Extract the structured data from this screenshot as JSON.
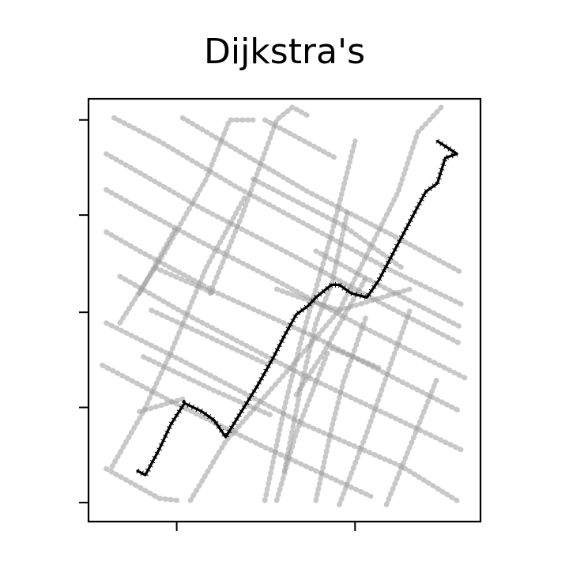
{
  "chart_data": {
    "type": "line",
    "title": "Dijkstra's",
    "xlabel": "",
    "ylabel": "",
    "xlim": [
      0,
      100
    ],
    "ylim": [
      0,
      100
    ],
    "x_ticks": [
      22.5,
      68
    ],
    "x_tick_labels": [
      "",
      ""
    ],
    "y_ticks": [
      4.5,
      27,
      49.5,
      72.5,
      95
    ],
    "y_tick_labels": [
      "",
      "",
      "",
      "",
      ""
    ],
    "grid": false,
    "legend": "none",
    "colors": {
      "streets": "#9a9a9a",
      "route": "#000000"
    },
    "streets": [
      [
        [
          6.5,
          95.5
        ],
        [
          18,
          90
        ],
        [
          38,
          79
        ],
        [
          57,
          69.5
        ],
        [
          77,
          59.5
        ],
        [
          96,
          51
        ]
      ],
      [
        [
          4.5,
          87
        ],
        [
          14,
          82
        ],
        [
          29,
          74
        ],
        [
          52,
          63
        ],
        [
          74,
          52
        ],
        [
          95,
          42
        ]
      ],
      [
        [
          4.5,
          78.5
        ],
        [
          15,
          73
        ],
        [
          29,
          66
        ],
        [
          48,
          57
        ],
        [
          70,
          46
        ],
        [
          96,
          34
        ]
      ],
      [
        [
          4.5,
          68.5
        ],
        [
          13,
          64
        ],
        [
          33,
          54
        ],
        [
          57,
          44
        ],
        [
          80,
          33
        ],
        [
          95,
          26
        ]
      ],
      [
        [
          8,
          58
        ],
        [
          25,
          49
        ],
        [
          54,
          35
        ],
        [
          77,
          25
        ],
        [
          95,
          17
        ]
      ],
      [
        [
          4.5,
          47
        ],
        [
          24,
          38
        ],
        [
          55,
          23
        ],
        [
          80,
          13
        ],
        [
          94,
          5
        ]
      ],
      [
        [
          3.5,
          37
        ],
        [
          22,
          28
        ],
        [
          44,
          18
        ],
        [
          72,
          6
        ]
      ],
      [
        [
          4.5,
          12.5
        ],
        [
          18,
          5.5
        ],
        [
          23,
          5
        ]
      ],
      [
        [
          24,
          95.5
        ],
        [
          34,
          90
        ],
        [
          56,
          78
        ],
        [
          77,
          68
        ],
        [
          95,
          59
        ]
      ],
      [
        [
          45,
          95
        ],
        [
          63,
          86
        ]
      ],
      [
        [
          42,
          81
        ],
        [
          65,
          70
        ],
        [
          80,
          60
        ]
      ],
      [
        [
          58,
          64
        ],
        [
          72,
          57
        ],
        [
          95,
          46
        ]
      ],
      [
        [
          26,
          5
        ],
        [
          35,
          19
        ],
        [
          52,
          37
        ],
        [
          64,
          50
        ],
        [
          79,
          78
        ],
        [
          84,
          92
        ],
        [
          90,
          98
        ]
      ],
      [
        [
          8,
          47
        ],
        [
          19,
          63
        ],
        [
          30,
          81
        ],
        [
          36,
          95
        ],
        [
          42,
          95
        ]
      ],
      [
        [
          13,
          54
        ],
        [
          22,
          69
        ]
      ],
      [
        [
          6,
          13
        ],
        [
          14,
          26
        ],
        [
          21,
          40
        ],
        [
          30,
          60
        ],
        [
          40,
          77
        ]
      ],
      [
        [
          45,
          5
        ],
        [
          50,
          27
        ],
        [
          54,
          42
        ],
        [
          62,
          68
        ],
        [
          68,
          90
        ]
      ],
      [
        [
          48,
          5
        ],
        [
          53,
          21
        ],
        [
          61,
          40
        ]
      ],
      [
        [
          58,
          5
        ],
        [
          62,
          22
        ],
        [
          65,
          33
        ],
        [
          71,
          49
        ]
      ],
      [
        [
          64,
          4
        ],
        [
          71,
          21
        ],
        [
          77,
          37
        ],
        [
          82,
          50
        ]
      ],
      [
        [
          76,
          4
        ],
        [
          83,
          20
        ],
        [
          89,
          34
        ]
      ],
      [
        [
          50,
          12
        ],
        [
          54,
          31
        ],
        [
          58,
          47
        ],
        [
          62,
          56
        ],
        [
          66,
          73
        ]
      ],
      [
        [
          31,
          54
        ],
        [
          39,
          72
        ],
        [
          48,
          95
        ],
        [
          52,
          98
        ],
        [
          56,
          96
        ]
      ],
      [
        [
          13,
          26
        ],
        [
          24,
          29
        ]
      ],
      [
        [
          48,
          55
        ],
        [
          57,
          52
        ],
        [
          64,
          50
        ],
        [
          82,
          55
        ]
      ],
      [
        [
          53,
          30
        ],
        [
          60,
          40
        ],
        [
          66,
          50
        ],
        [
          71,
          58
        ]
      ],
      [
        [
          62,
          41
        ],
        [
          70,
          38
        ],
        [
          75,
          36
        ]
      ],
      [
        [
          14,
          39
        ],
        [
          32,
          31
        ],
        [
          47,
          25
        ]
      ],
      [
        [
          16,
          50
        ],
        [
          30,
          44
        ],
        [
          46,
          37
        ]
      ],
      [
        [
          17,
          60
        ],
        [
          32,
          54
        ]
      ]
    ],
    "route": [
      [
        12.5,
        12
      ],
      [
        14.5,
        11
      ],
      [
        18,
        17
      ],
      [
        21,
        23
      ],
      [
        24.5,
        28
      ],
      [
        29,
        26
      ],
      [
        32,
        24
      ],
      [
        35,
        20
      ],
      [
        39,
        26
      ],
      [
        43,
        32
      ],
      [
        47,
        38.5
      ],
      [
        50,
        44
      ],
      [
        53,
        49
      ],
      [
        56,
        51
      ],
      [
        58,
        53
      ],
      [
        62,
        56
      ],
      [
        64,
        56
      ],
      [
        67,
        54
      ],
      [
        71,
        53
      ],
      [
        74,
        57
      ],
      [
        78,
        64
      ],
      [
        82,
        71
      ],
      [
        86,
        78
      ],
      [
        89,
        80
      ],
      [
        91,
        86
      ],
      [
        94,
        87
      ],
      [
        89,
        90
      ]
    ]
  }
}
